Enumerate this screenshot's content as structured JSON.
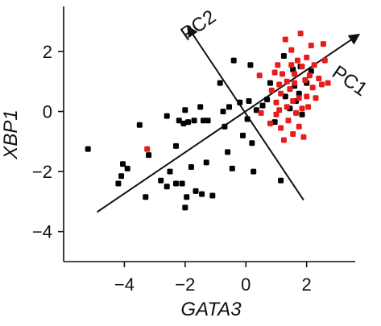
{
  "chart_data": {
    "type": "scatter",
    "title": "",
    "xlabel": "GATA3",
    "ylabel": "XBP1",
    "xlim": [
      -6,
      3.6
    ],
    "ylim": [
      -5,
      3.5
    ],
    "xticks": [
      -4,
      -2,
      0,
      2
    ],
    "yticks": [
      -4,
      -2,
      0,
      2
    ],
    "xtick_labels": [
      "−4",
      "−2",
      "0",
      "2"
    ],
    "ytick_labels": [
      "−4",
      "−2",
      "0",
      "2"
    ],
    "grid": false,
    "legend": "none",
    "series": [
      {
        "color": "#000000",
        "points": [
          [
            -5.2,
            -1.25
          ],
          [
            -4.2,
            -2.4
          ],
          [
            -4.1,
            -2.15
          ],
          [
            -4.05,
            -1.75
          ],
          [
            -3.9,
            -1.9
          ],
          [
            -3.5,
            -0.45
          ],
          [
            -3.3,
            -2.85
          ],
          [
            -3.2,
            -1.45
          ],
          [
            -2.8,
            -2.3
          ],
          [
            -2.6,
            -0.15
          ],
          [
            -2.6,
            -2.5
          ],
          [
            -2.5,
            -2.0
          ],
          [
            -2.3,
            -2.4
          ],
          [
            -2.3,
            -1.15
          ],
          [
            -2.2,
            -0.3
          ],
          [
            -2.1,
            -2.4
          ],
          [
            -2.05,
            -0.4
          ],
          [
            -2.0,
            -3.2
          ],
          [
            -2.0,
            0.05
          ],
          [
            -1.95,
            -2.85
          ],
          [
            -1.9,
            -0.35
          ],
          [
            -1.8,
            -1.85
          ],
          [
            -1.7,
            -0.3
          ],
          [
            -1.65,
            -2.65
          ],
          [
            -1.5,
            0.15
          ],
          [
            -1.45,
            -2.75
          ],
          [
            -1.4,
            -0.3
          ],
          [
            -1.3,
            -1.7
          ],
          [
            -1.25,
            -0.3
          ],
          [
            -1.1,
            -2.8
          ],
          [
            -0.85,
            0.95
          ],
          [
            -0.75,
            0.0
          ],
          [
            -0.7,
            -0.5
          ],
          [
            -0.6,
            -1.35
          ],
          [
            -0.55,
            0.15
          ],
          [
            -0.45,
            -1.9
          ],
          [
            -0.4,
            1.7
          ],
          [
            -0.2,
            0.3
          ],
          [
            -0.1,
            -0.8
          ],
          [
            0.05,
            -0.25
          ],
          [
            0.1,
            0.35
          ],
          [
            0.15,
            1.55
          ],
          [
            0.2,
            -1.05
          ],
          [
            0.25,
            -2.0
          ],
          [
            0.35,
            0.05
          ],
          [
            0.55,
            0.2
          ],
          [
            0.7,
            0.4
          ],
          [
            0.8,
            0.95
          ],
          [
            0.95,
            -0.35
          ],
          [
            1.15,
            -2.3
          ],
          [
            1.25,
            1.85
          ],
          [
            1.3,
            0.5
          ],
          [
            1.45,
            0.1
          ],
          [
            1.55,
            1.4
          ],
          [
            1.6,
            0.85
          ],
          [
            1.65,
            0.35
          ],
          [
            1.75,
            0.6
          ],
          [
            1.8,
            1.5
          ],
          [
            1.85,
            -0.1
          ],
          [
            2.0,
            0.95
          ],
          [
            2.15,
            1.35
          ]
        ]
      },
      {
        "color": "#e81c1c",
        "points": [
          [
            -3.25,
            -1.25
          ],
          [
            0.45,
            1.2
          ],
          [
            0.5,
            -0.05
          ],
          [
            0.8,
            -0.4
          ],
          [
            0.85,
            0.7
          ],
          [
            0.95,
            1.3
          ],
          [
            1.0,
            0.3
          ],
          [
            1.0,
            -0.1
          ],
          [
            1.05,
            1.55
          ],
          [
            1.1,
            0.9
          ],
          [
            1.1,
            0.05
          ],
          [
            1.15,
            0.6
          ],
          [
            1.15,
            -0.55
          ],
          [
            1.2,
            1.25
          ],
          [
            1.25,
            -0.95
          ],
          [
            1.3,
            2.4
          ],
          [
            1.35,
            1.0
          ],
          [
            1.35,
            0.15
          ],
          [
            1.4,
            -0.3
          ],
          [
            1.45,
            0.75
          ],
          [
            1.5,
            1.55
          ],
          [
            1.5,
            2.05
          ],
          [
            1.55,
            0.35
          ],
          [
            1.55,
            -0.75
          ],
          [
            1.6,
            0.95
          ],
          [
            1.6,
            1.25
          ],
          [
            1.65,
            -0.05
          ],
          [
            1.7,
            1.7
          ],
          [
            1.75,
            0.45
          ],
          [
            1.75,
            -0.5
          ],
          [
            1.8,
            2.6
          ],
          [
            1.85,
            1.5
          ],
          [
            1.85,
            0.1
          ],
          [
            1.9,
            -0.85
          ],
          [
            1.95,
            1.05
          ],
          [
            2.0,
            0.5
          ],
          [
            2.0,
            1.8
          ],
          [
            2.05,
            0.15
          ],
          [
            2.1,
            1.2
          ],
          [
            2.15,
            2.2
          ],
          [
            2.2,
            0.8
          ],
          [
            2.25,
            1.55
          ],
          [
            2.3,
            0.45
          ],
          [
            2.4,
            1.1
          ],
          [
            2.5,
            0.9
          ],
          [
            2.55,
            2.25
          ],
          [
            2.6,
            1.7
          ],
          [
            2.7,
            0.95
          ]
        ]
      }
    ],
    "annotations": [
      {
        "label": "PC1",
        "from": [
          -4.9,
          -3.35
        ],
        "to": [
          3.7,
          2.55
        ],
        "arrow": "end",
        "label_at": [
          3.3,
          0.85
        ],
        "label_rotate": 35
      },
      {
        "label": "PC2",
        "from": [
          1.9,
          -2.95
        ],
        "to": [
          -1.9,
          2.8
        ],
        "arrow": "end",
        "label_at": [
          -1.45,
          2.7
        ],
        "label_rotate": -35
      }
    ]
  }
}
